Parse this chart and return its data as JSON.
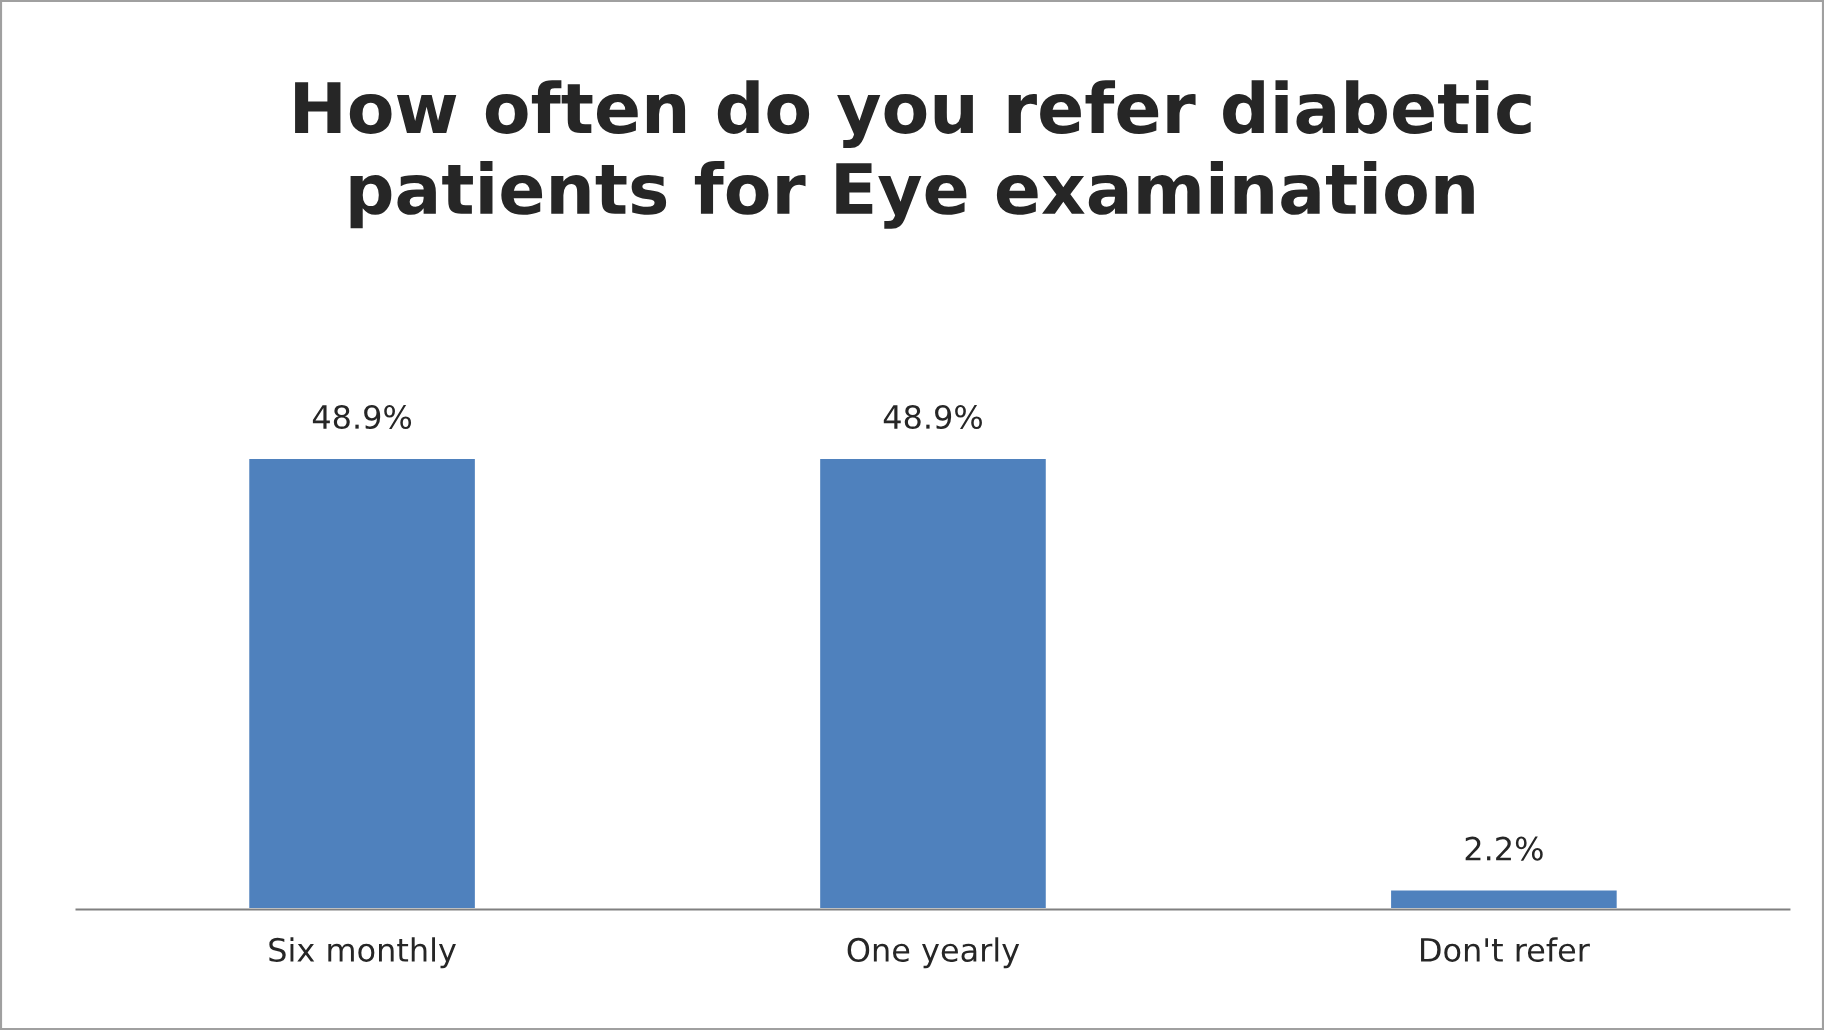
{
  "chart_data": {
    "type": "bar",
    "title": "How often do you refer diabetic\npatients for Eye examination",
    "categories": [
      "Six monthly",
      "One yearly",
      "Don't refer"
    ],
    "series": [
      {
        "color": "#4f81bd",
        "values": [
          48.9,
          48.9,
          2.2
        ],
        "value_labels": [
          "48.9%",
          "48.9%",
          "2.2%"
        ]
      }
    ],
    "grid": false,
    "legend": false
  }
}
